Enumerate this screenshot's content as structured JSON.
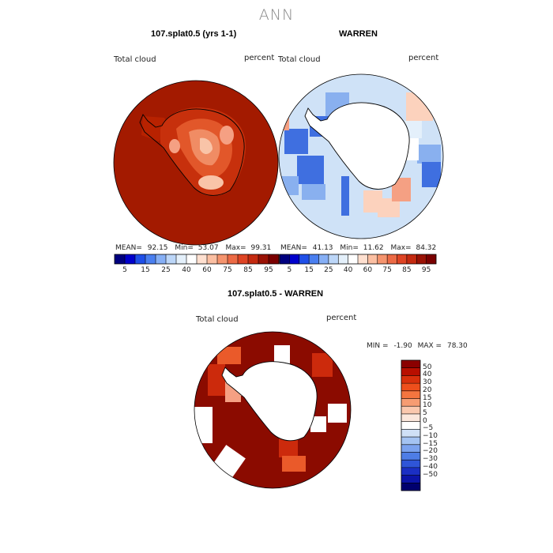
{
  "page": {
    "title": "ANN"
  },
  "panels": [
    {
      "title": "107.splat0.5 (yrs 1-1)",
      "variable": "Total cloud",
      "units": "percent",
      "stats": {
        "mean_label": "MEAN=",
        "mean": "92.15",
        "min_label": "Min=",
        "min": "53.07",
        "max_label": "Max=",
        "max": "99.31"
      }
    },
    {
      "title": "WARREN",
      "variable": "Total cloud",
      "units": "percent",
      "stats": {
        "mean_label": "MEAN=",
        "mean": "41.13",
        "min_label": "Min=",
        "min": "11.62",
        "max_label": "Max=",
        "max": "84.32"
      }
    },
    {
      "title": "107.splat0.5 - WARREN",
      "variable": "Total cloud",
      "units": "percent",
      "stats": {
        "min_label": "MIN =",
        "min": "-1.90",
        "max_label": "MAX =",
        "max": "78.30"
      }
    }
  ],
  "colorbar_top": {
    "colors": [
      "#00007f",
      "#0000cc",
      "#1f4fe8",
      "#4a7ff0",
      "#86aff5",
      "#bcd6f8",
      "#e4f0fb",
      "#ffffff",
      "#ffe0d0",
      "#fbbfa2",
      "#f5946e",
      "#ec6a45",
      "#de4424",
      "#c42a10",
      "#9a1205",
      "#7a0000"
    ],
    "labels": [
      "5",
      "15",
      "25",
      "40",
      "60",
      "75",
      "85",
      "95"
    ]
  },
  "colorbar_diff": {
    "colors": [
      "#8b0000",
      "#b80f00",
      "#d8300c",
      "#ee4f1c",
      "#f4753f",
      "#f69c72",
      "#fac8ae",
      "#fbe7dc",
      "#ffffff",
      "#cfe0f6",
      "#a4c3f2",
      "#7ba2ee",
      "#4e7de6",
      "#2f55d8",
      "#1b2fc4",
      "#0c14a8",
      "#00006e"
    ],
    "labels": [
      "50",
      "40",
      "30",
      "20",
      "15",
      "10",
      "5",
      "0",
      "−5",
      "−10",
      "−15",
      "−20",
      "−30",
      "−40",
      "−50"
    ]
  },
  "colors": {
    "dark_red": "#8b0b00",
    "deep_red": "#a01000",
    "red": "#cc2a0c",
    "orange": "#ea5a2a",
    "salmon": "#f5a083",
    "peach": "#fcd2bd",
    "light_blue": "#cfe2f7",
    "mid_blue": "#89b0ef",
    "blue": "#3f6fe0",
    "white": "#ffffff"
  }
}
